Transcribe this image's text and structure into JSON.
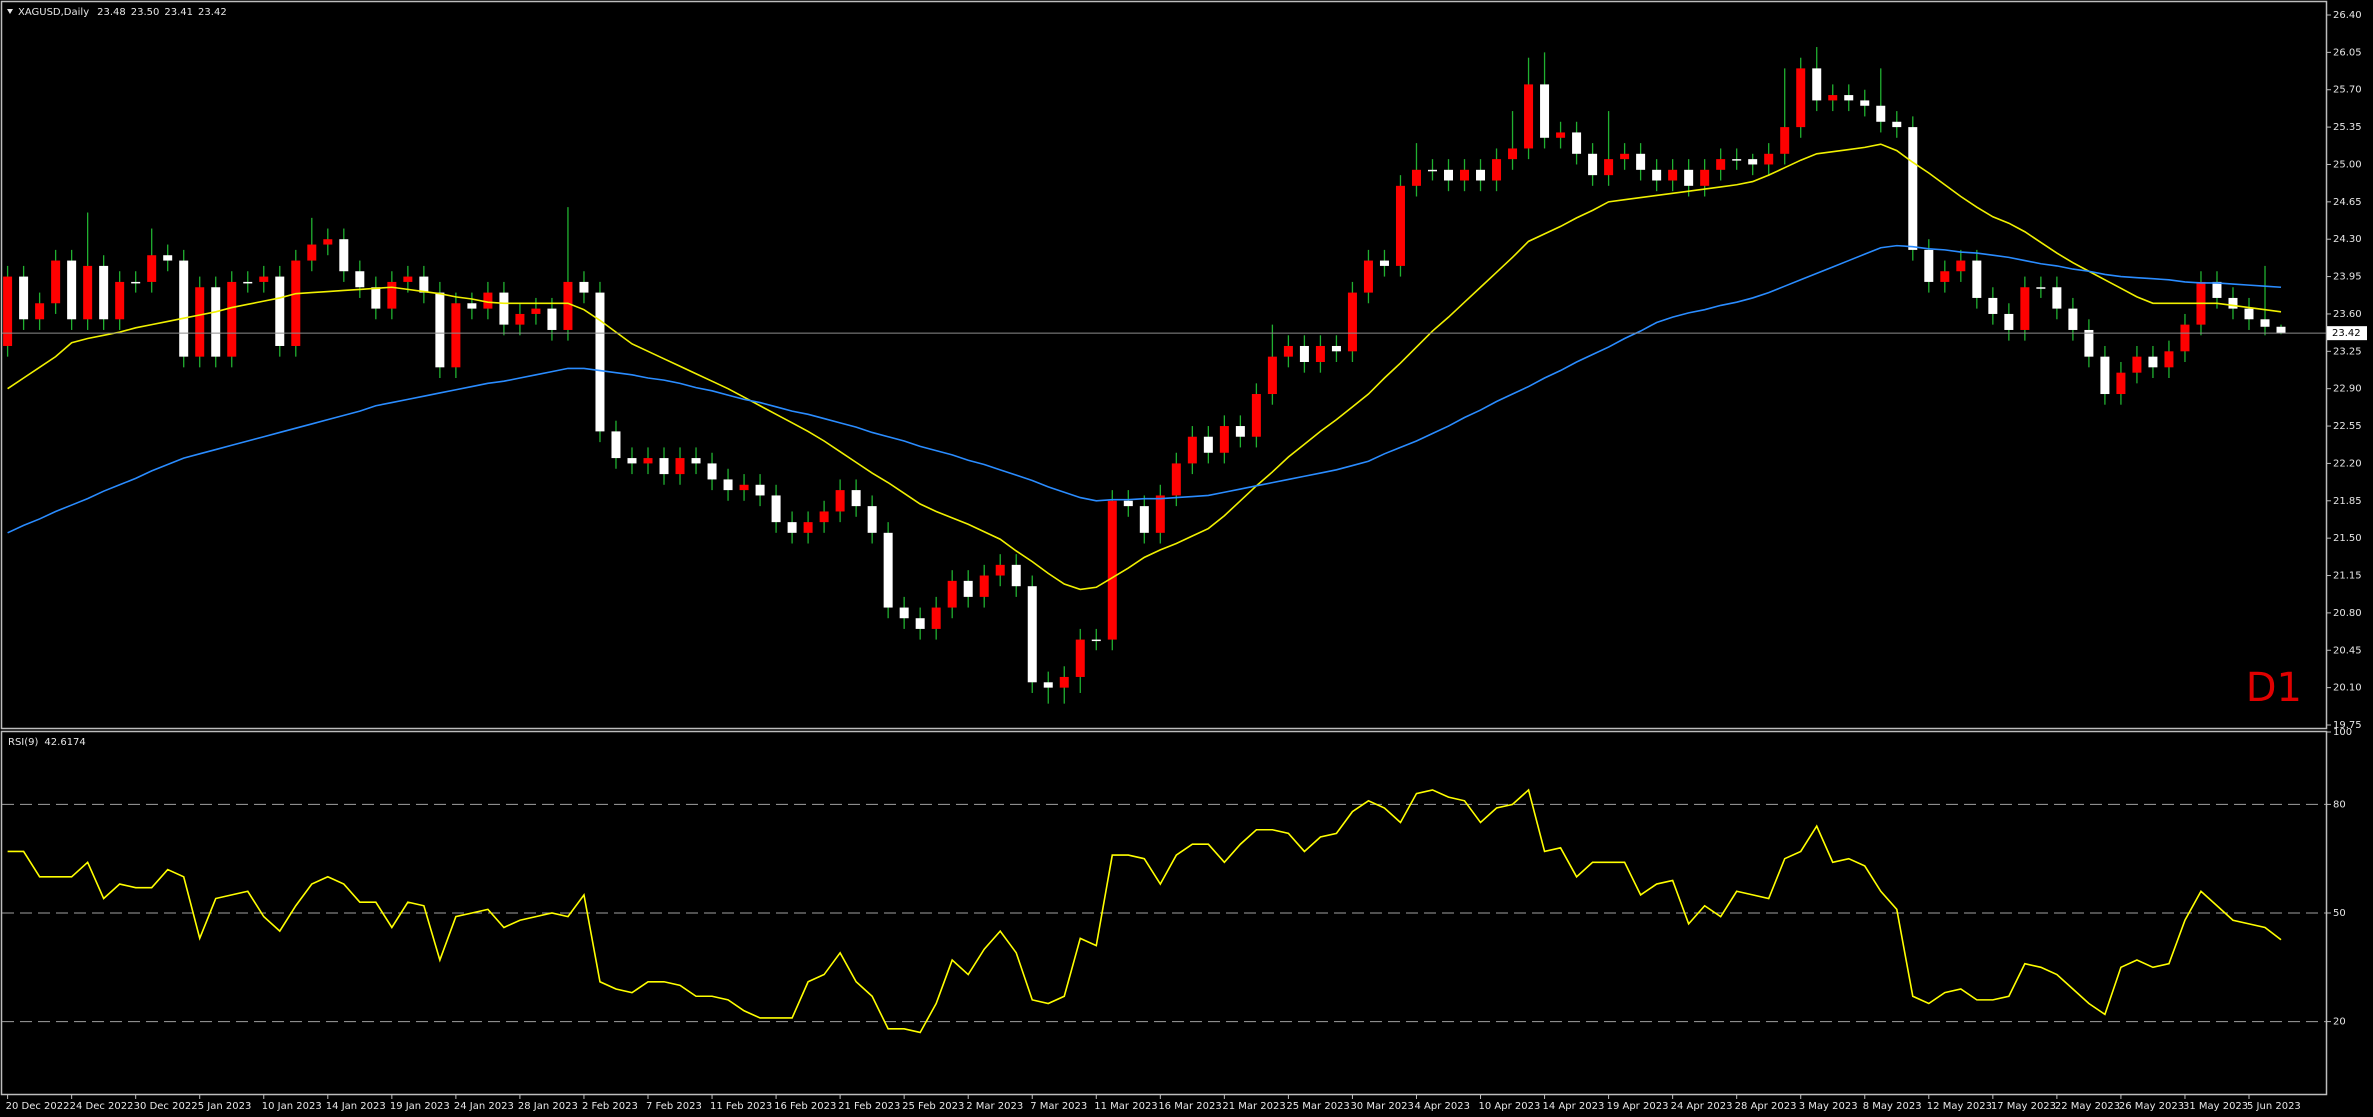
{
  "chart_data": [
    {
      "type": "candlestick",
      "title": "XAGUSD,Daily",
      "last_bar_labels": [
        "23.48",
        "23.50",
        "23.41",
        "23.42"
      ],
      "annotation": "D1",
      "up_color": "#ff0000",
      "down_color": "#ffffff",
      "wick_color": "#20b030",
      "price_line_color": "#8c8c8c",
      "categories": [
        "20 Dec 2022",
        null,
        null,
        null,
        "24 Dec 2022",
        null,
        null,
        null,
        "30 Dec 2022",
        null,
        null,
        null,
        "5 Jan 2023",
        null,
        null,
        null,
        "10 Jan 2023",
        null,
        null,
        null,
        "14 Jan 2023",
        null,
        null,
        null,
        "19 Jan 2023",
        null,
        null,
        null,
        "24 Jan 2023",
        null,
        null,
        null,
        "28 Jan 2023",
        null,
        null,
        null,
        "2 Feb 2023",
        null,
        null,
        null,
        "7 Feb 2023",
        null,
        null,
        null,
        "11 Feb 2023",
        null,
        null,
        null,
        "16 Feb 2023",
        null,
        null,
        null,
        "21 Feb 2023",
        null,
        null,
        null,
        "25 Feb 2023",
        null,
        null,
        null,
        "2 Mar 2023",
        null,
        null,
        null,
        "7 Mar 2023",
        null,
        null,
        null,
        "11 Mar 2023",
        null,
        null,
        null,
        "16 Mar 2023",
        null,
        null,
        null,
        "21 Mar 2023",
        null,
        null,
        null,
        "25 Mar 2023",
        null,
        null,
        null,
        "30 Mar 2023",
        null,
        null,
        null,
        "4 Apr 2023",
        null,
        null,
        null,
        "10 Apr 2023",
        null,
        null,
        null,
        "14 Apr 2023",
        null,
        null,
        null,
        "19 Apr 2023",
        null,
        null,
        null,
        "24 Apr 2023",
        null,
        null,
        null,
        "28 Apr 2023",
        null,
        null,
        null,
        "3 May 2023",
        null,
        null,
        null,
        "8 May 2023",
        null,
        null,
        null,
        "12 May 2023",
        null,
        null,
        null,
        "17 May 2023",
        null,
        null,
        null,
        "22 May 2023",
        null,
        null,
        null,
        "26 May 2023",
        null,
        null,
        null,
        "31 May 2023",
        null,
        null,
        null,
        "5 Jun 2023",
        null,
        null
      ],
      "open": [
        23.3,
        23.95,
        23.55,
        23.7,
        24.1,
        23.55,
        24.05,
        23.55,
        23.9,
        23.9,
        24.15,
        24.1,
        23.2,
        23.85,
        23.2,
        23.9,
        23.9,
        23.95,
        23.3,
        24.1,
        24.25,
        24.3,
        24.0,
        23.85,
        23.65,
        23.9,
        23.95,
        23.8,
        23.1,
        23.7,
        23.65,
        23.8,
        23.5,
        23.6,
        23.65,
        23.45,
        23.9,
        23.8,
        22.5,
        22.25,
        22.2,
        22.25,
        22.1,
        22.25,
        22.2,
        22.05,
        21.95,
        22.0,
        21.9,
        21.65,
        21.55,
        21.65,
        21.75,
        21.95,
        21.8,
        21.55,
        20.85,
        20.75,
        20.65,
        20.85,
        21.1,
        20.95,
        21.15,
        21.25,
        21.05,
        20.15,
        20.1,
        20.2,
        20.55,
        20.55,
        21.85,
        21.8,
        21.55,
        21.9,
        22.2,
        22.45,
        22.3,
        22.55,
        22.45,
        22.85,
        23.2,
        23.3,
        23.15,
        23.3,
        23.25,
        23.8,
        24.1,
        24.05,
        24.8,
        24.95,
        24.95,
        24.85,
        24.95,
        24.85,
        25.05,
        25.15,
        25.75,
        25.25,
        25.3,
        25.1,
        24.9,
        25.05,
        25.1,
        24.95,
        24.85,
        24.95,
        24.8,
        24.95,
        25.05,
        25.05,
        25.0,
        25.1,
        25.35,
        25.9,
        25.6,
        25.65,
        25.6,
        25.55,
        25.4,
        25.35,
        24.2,
        23.9,
        24.0,
        24.1,
        23.75,
        23.6,
        23.45,
        23.85,
        23.85,
        23.65,
        23.45,
        23.2,
        22.85,
        23.05,
        23.2,
        23.1,
        23.25,
        23.5,
        23.9,
        23.75,
        23.65,
        23.55,
        23.48
      ],
      "high": [
        24.05,
        24.05,
        23.8,
        24.2,
        24.2,
        24.55,
        24.15,
        24.0,
        24.0,
        24.4,
        24.25,
        24.2,
        23.95,
        23.95,
        24.0,
        24.0,
        24.05,
        24.05,
        24.2,
        24.5,
        24.4,
        24.4,
        24.1,
        23.95,
        24.0,
        24.05,
        24.05,
        23.9,
        23.8,
        23.8,
        23.9,
        23.9,
        23.7,
        23.75,
        23.75,
        24.6,
        24.0,
        23.9,
        22.6,
        22.35,
        22.35,
        22.35,
        22.35,
        22.35,
        22.3,
        22.15,
        22.1,
        22.1,
        22.0,
        21.75,
        21.75,
        21.85,
        22.05,
        22.05,
        21.9,
        21.65,
        20.95,
        20.85,
        20.95,
        21.2,
        21.2,
        21.25,
        21.35,
        21.35,
        21.15,
        20.25,
        20.3,
        20.65,
        20.65,
        21.95,
        21.95,
        21.9,
        22.0,
        22.3,
        22.55,
        22.55,
        22.65,
        22.65,
        22.95,
        23.5,
        23.4,
        23.4,
        23.4,
        23.4,
        23.9,
        24.2,
        24.2,
        24.9,
        25.2,
        25.05,
        25.05,
        25.05,
        25.05,
        25.15,
        25.5,
        26.0,
        26.05,
        25.4,
        25.4,
        25.2,
        25.5,
        25.2,
        25.2,
        25.05,
        25.05,
        25.05,
        25.05,
        25.15,
        25.15,
        25.1,
        25.2,
        25.9,
        26.0,
        26.1,
        25.75,
        25.75,
        25.7,
        25.9,
        25.5,
        25.45,
        24.3,
        24.1,
        24.2,
        24.2,
        23.85,
        23.7,
        23.95,
        23.95,
        23.95,
        23.75,
        23.55,
        23.3,
        23.15,
        23.3,
        23.3,
        23.35,
        23.6,
        24.0,
        24.0,
        23.85,
        23.75,
        24.05,
        23.5
      ],
      "low": [
        23.2,
        23.45,
        23.45,
        23.6,
        23.45,
        23.45,
        23.45,
        23.45,
        23.8,
        23.8,
        24.0,
        23.1,
        23.1,
        23.1,
        23.1,
        23.8,
        23.8,
        23.2,
        23.2,
        24.0,
        24.15,
        23.9,
        23.75,
        23.55,
        23.55,
        23.8,
        23.7,
        23.0,
        23.0,
        23.55,
        23.55,
        23.4,
        23.4,
        23.5,
        23.35,
        23.35,
        23.7,
        22.4,
        22.15,
        22.1,
        22.1,
        22.0,
        22.0,
        22.1,
        21.95,
        21.85,
        21.85,
        21.8,
        21.55,
        21.45,
        21.45,
        21.55,
        21.65,
        21.7,
        21.45,
        20.75,
        20.65,
        20.55,
        20.55,
        20.75,
        20.85,
        20.85,
        21.05,
        20.95,
        20.05,
        19.95,
        19.95,
        20.05,
        20.45,
        20.45,
        21.7,
        21.45,
        21.45,
        21.8,
        22.1,
        22.2,
        22.2,
        22.35,
        22.35,
        22.75,
        23.1,
        23.05,
        23.05,
        23.15,
        23.15,
        23.7,
        23.95,
        23.95,
        24.7,
        24.85,
        24.75,
        24.75,
        24.75,
        24.75,
        24.95,
        25.05,
        25.15,
        25.15,
        25.0,
        24.8,
        24.8,
        24.95,
        24.85,
        24.75,
        24.75,
        24.7,
        24.7,
        24.85,
        24.95,
        24.9,
        24.9,
        25.0,
        25.25,
        25.5,
        25.5,
        25.5,
        25.45,
        25.3,
        25.25,
        24.1,
        23.8,
        23.8,
        23.9,
        23.65,
        23.5,
        23.35,
        23.35,
        23.75,
        23.55,
        23.35,
        23.1,
        22.75,
        22.75,
        22.95,
        23.0,
        23.0,
        23.15,
        23.4,
        23.65,
        23.55,
        23.45,
        23.4,
        23.41
      ],
      "close": [
        23.95,
        23.55,
        23.7,
        24.1,
        23.55,
        24.05,
        23.55,
        23.9,
        23.9,
        24.15,
        24.1,
        23.2,
        23.85,
        23.2,
        23.9,
        23.9,
        23.95,
        23.3,
        24.1,
        24.25,
        24.3,
        24.0,
        23.85,
        23.65,
        23.9,
        23.95,
        23.8,
        23.1,
        23.7,
        23.65,
        23.8,
        23.5,
        23.6,
        23.65,
        23.45,
        23.9,
        23.8,
        22.5,
        22.25,
        22.2,
        22.25,
        22.1,
        22.25,
        22.2,
        22.05,
        21.95,
        22.0,
        21.9,
        21.65,
        21.55,
        21.65,
        21.75,
        21.95,
        21.8,
        21.55,
        20.85,
        20.75,
        20.65,
        20.85,
        21.1,
        20.95,
        21.15,
        21.25,
        21.05,
        20.15,
        20.1,
        20.2,
        20.55,
        20.55,
        21.85,
        21.8,
        21.55,
        21.9,
        22.2,
        22.45,
        22.3,
        22.55,
        22.45,
        22.85,
        23.2,
        23.3,
        23.15,
        23.3,
        23.25,
        23.8,
        24.1,
        24.05,
        24.8,
        24.95,
        24.95,
        24.85,
        24.95,
        24.85,
        25.05,
        25.15,
        25.75,
        25.25,
        25.3,
        25.1,
        24.9,
        25.05,
        25.1,
        24.95,
        24.85,
        24.95,
        24.8,
        24.95,
        25.05,
        25.05,
        25.0,
        25.1,
        25.35,
        25.9,
        25.6,
        25.65,
        25.6,
        25.55,
        25.4,
        25.35,
        24.2,
        23.9,
        24.0,
        24.1,
        23.75,
        23.6,
        23.45,
        23.85,
        23.85,
        23.65,
        23.45,
        23.2,
        22.85,
        23.05,
        23.2,
        23.1,
        23.25,
        23.5,
        23.9,
        23.75,
        23.65,
        23.55,
        23.48,
        23.42
      ],
      "series": [
        {
          "color": "#f0f000",
          "values": [
            22.9,
            23.0,
            23.1,
            23.2,
            23.33,
            23.37,
            23.4,
            23.43,
            23.47,
            23.5,
            23.53,
            23.56,
            23.59,
            23.62,
            23.66,
            23.69,
            23.72,
            23.75,
            23.79,
            23.8,
            23.81,
            23.82,
            23.83,
            23.84,
            23.85,
            23.83,
            23.81,
            23.79,
            23.76,
            23.74,
            23.71,
            23.7,
            23.7,
            23.7,
            23.7,
            23.7,
            23.64,
            23.54,
            23.43,
            23.32,
            23.25,
            23.18,
            23.11,
            23.04,
            22.97,
            22.9,
            22.82,
            22.74,
            22.66,
            22.58,
            22.5,
            22.41,
            22.31,
            22.21,
            22.11,
            22.02,
            21.92,
            21.82,
            21.75,
            21.69,
            21.63,
            21.56,
            21.49,
            21.38,
            21.28,
            21.17,
            21.07,
            21.02,
            21.04,
            21.13,
            21.22,
            21.32,
            21.39,
            21.45,
            21.52,
            21.59,
            21.71,
            21.85,
            21.99,
            22.12,
            22.26,
            22.38,
            22.5,
            22.61,
            22.73,
            22.85,
            23.0,
            23.14,
            23.29,
            23.44,
            23.57,
            23.71,
            23.85,
            23.99,
            24.13,
            24.28,
            24.35,
            24.42,
            24.5,
            24.57,
            24.65,
            24.67,
            24.69,
            24.71,
            24.73,
            24.75,
            24.77,
            24.79,
            24.81,
            24.84,
            24.9,
            24.97,
            25.04,
            25.1,
            25.12,
            25.14,
            25.16,
            25.19,
            25.13,
            25.02,
            24.92,
            24.81,
            24.7,
            24.6,
            24.51,
            24.45,
            24.37,
            24.27,
            24.17,
            24.08,
            24.0,
            23.92,
            23.84,
            23.76,
            23.7,
            23.7,
            23.7,
            23.7,
            23.7,
            23.68,
            23.66,
            23.64,
            23.62
          ]
        },
        {
          "color": "#2a8cff",
          "values": [
            21.55,
            21.62,
            21.68,
            21.75,
            21.81,
            21.87,
            21.94,
            22.0,
            22.06,
            22.13,
            22.19,
            22.25,
            22.29,
            22.33,
            22.37,
            22.41,
            22.45,
            22.49,
            22.53,
            22.57,
            22.61,
            22.65,
            22.69,
            22.74,
            22.77,
            22.8,
            22.83,
            22.86,
            22.89,
            22.92,
            22.95,
            22.97,
            23.0,
            23.03,
            23.06,
            23.09,
            23.09,
            23.07,
            23.05,
            23.03,
            23.0,
            22.98,
            22.95,
            22.91,
            22.88,
            22.84,
            22.8,
            22.77,
            22.73,
            22.69,
            22.66,
            22.62,
            22.58,
            22.54,
            22.49,
            22.45,
            22.41,
            22.36,
            22.32,
            22.28,
            22.23,
            22.19,
            22.14,
            22.09,
            22.04,
            21.98,
            21.93,
            21.88,
            21.85,
            21.86,
            21.86,
            21.87,
            21.87,
            21.88,
            21.89,
            21.9,
            21.93,
            21.96,
            21.99,
            22.02,
            22.05,
            22.08,
            22.11,
            22.14,
            22.18,
            22.22,
            22.29,
            22.35,
            22.41,
            22.48,
            22.55,
            22.63,
            22.7,
            22.78,
            22.85,
            22.92,
            23.0,
            23.07,
            23.15,
            23.22,
            23.29,
            23.37,
            23.44,
            23.52,
            23.57,
            23.61,
            23.64,
            23.68,
            23.71,
            23.75,
            23.8,
            23.86,
            23.92,
            23.98,
            24.04,
            24.1,
            24.16,
            24.22,
            24.24,
            24.23,
            24.21,
            24.2,
            24.18,
            24.17,
            24.15,
            24.13,
            24.1,
            24.07,
            24.05,
            24.02,
            24.0,
            23.97,
            23.95,
            23.94,
            23.93,
            23.92,
            23.9,
            23.89,
            23.89,
            23.88,
            23.87,
            23.86,
            23.85
          ]
        }
      ],
      "ylim": [
        19.75,
        26.4
      ],
      "yticks": [
        {
          "value": 26.4,
          "label": "26.40"
        },
        26.05,
        {
          "value": 25.7,
          "label": "25.70"
        },
        25.35,
        {
          "value": 25.0,
          "label": "25.00"
        },
        24.65,
        {
          "value": 24.3,
          "label": "24.30"
        },
        23.95,
        {
          "value": 23.6,
          "label": "23.60"
        },
        23.25,
        {
          "value": 22.9,
          "label": "22.90"
        },
        22.55,
        {
          "value": 22.2,
          "label": "22.20"
        },
        21.85,
        {
          "value": 21.5,
          "label": "21.50"
        },
        21.15,
        {
          "value": 20.8,
          "label": "20.80"
        },
        20.45,
        {
          "value": 20.1,
          "label": "20.10"
        },
        19.75
      ]
    },
    {
      "type": "line",
      "title": "RSI(9)",
      "color": "#ffff00",
      "level_color": "#a0a0a0",
      "values": [
        67,
        67,
        60,
        60,
        60,
        64,
        54,
        58,
        57,
        57,
        62,
        60,
        43,
        54,
        55,
        56,
        49,
        45,
        52,
        58,
        60,
        58,
        53,
        53,
        46,
        53,
        52,
        37,
        49,
        50,
        51,
        46,
        48,
        49,
        50,
        49,
        55,
        31,
        29,
        28,
        31,
        31,
        30,
        27,
        27,
        26,
        23,
        21,
        21,
        21,
        31,
        33,
        39,
        31,
        27,
        18,
        18,
        17,
        25,
        37,
        33,
        40,
        45,
        39,
        26,
        25,
        27,
        43,
        41,
        66,
        66,
        65,
        58,
        66,
        69,
        69,
        64,
        69,
        73,
        73,
        72,
        67,
        71,
        72,
        78,
        81,
        79,
        75,
        83,
        84,
        82,
        81,
        75,
        79,
        80,
        84,
        67,
        68,
        60,
        64,
        64,
        64,
        55,
        58,
        59,
        47,
        52,
        49,
        56,
        55,
        54,
        65,
        67,
        74,
        64,
        65,
        63,
        56,
        51,
        27,
        25,
        28,
        29,
        26,
        26,
        27,
        36,
        35,
        33,
        29,
        25,
        22,
        35,
        37,
        35,
        36,
        48,
        56,
        52,
        48,
        47,
        46,
        42.6174
      ],
      "ylim": [
        0,
        100
      ],
      "yticks": [
        100,
        80,
        50,
        20
      ]
    }
  ]
}
